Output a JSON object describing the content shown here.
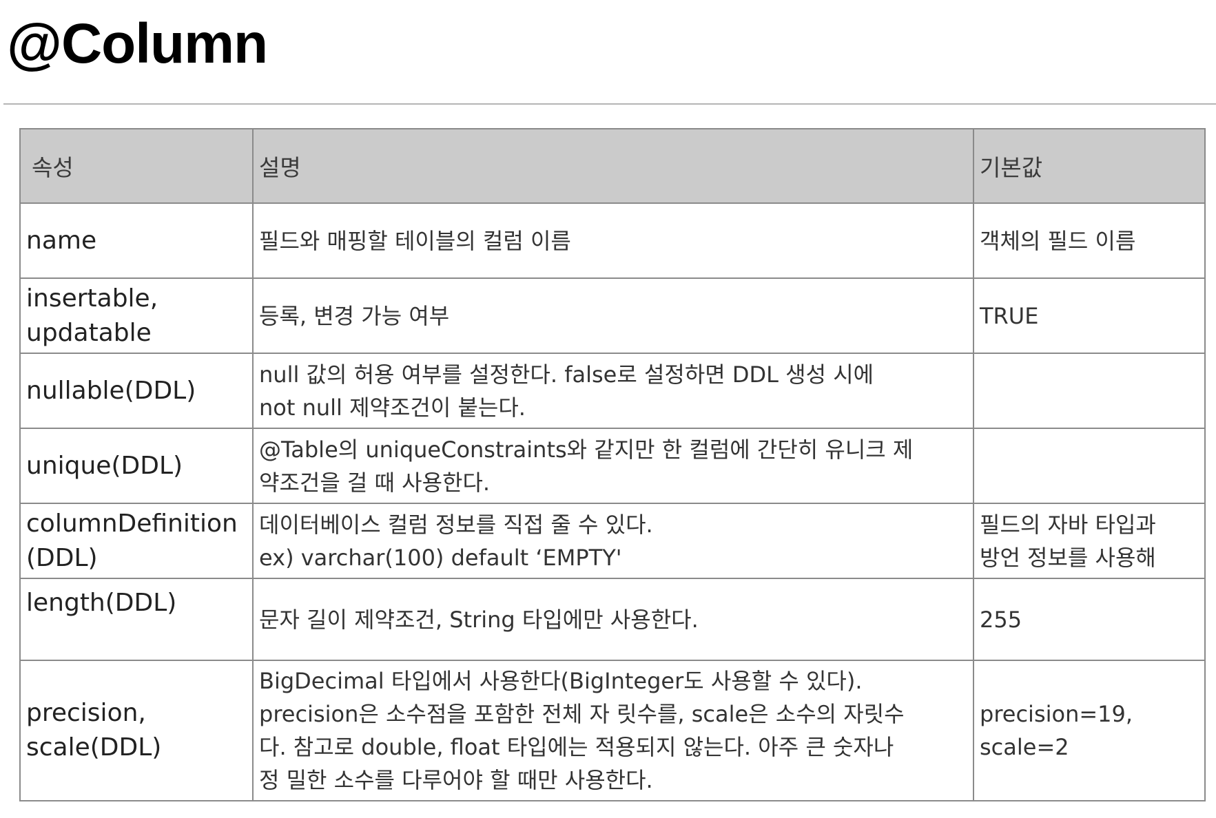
{
  "page": {
    "title": "@Column"
  },
  "table": {
    "headers": [
      "속성",
      "설명",
      "기본값"
    ],
    "rows": [
      {
        "name": [
          "name"
        ],
        "desc": [
          "필드와 매핑할 테이블의 컬럼 이름"
        ],
        "default": [
          "객체의 필드 이름"
        ]
      },
      {
        "name": [
          "insertable,",
          "updatable"
        ],
        "desc": [
          "등록, 변경 가능 여부"
        ],
        "default": [
          "TRUE"
        ]
      },
      {
        "name": [
          "nullable(DDL)"
        ],
        "desc": [
          "null 값의 허용 여부를 설정한다. false로 설정하면 DDL 생성 시에",
          "not null 제약조건이 붙는다."
        ],
        "default": []
      },
      {
        "name": [
          "unique(DDL)"
        ],
        "desc": [
          "@Table의 uniqueConstraints와 같지만 한 컬럼에 간단히 유니크 제",
          "약조건을 걸 때 사용한다."
        ],
        "default": []
      },
      {
        "name": [
          "columnDefinition",
          "(DDL)"
        ],
        "desc": [
          "데이터베이스 컬럼 정보를 직접 줄 수 있다.",
          "ex) varchar(100) default ‘EMPTY'"
        ],
        "default": [
          "필드의 자바 타입과",
          "방언 정보를 사용해"
        ]
      },
      {
        "name": [
          "length(DDL)"
        ],
        "desc": [
          "문자 길이 제약조건, String 타입에만 사용한다."
        ],
        "default": [
          "255"
        ]
      },
      {
        "name": [
          "precision,",
          "scale(DDL)"
        ],
        "desc": [
          "BigDecimal 타입에서 사용한다(BigInteger도 사용할 수 있다).",
          "precision은 소수점을 포함한 전체 자 릿수를, scale은 소수의 자릿수",
          "다. 참고로 double, float 타입에는 적용되지 않는다. 아주 큰 숫자나",
          "정 밀한 소수를 다루어야 할 때만 사용한다."
        ],
        "default": [
          "precision=19,",
          "scale=2"
        ]
      }
    ]
  }
}
